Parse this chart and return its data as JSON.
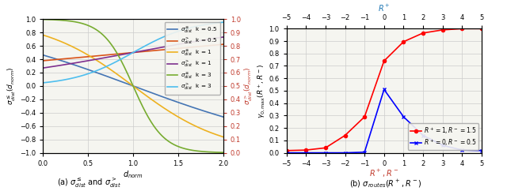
{
  "subplot1": {
    "x_range": [
      0,
      2
    ],
    "k_values": [
      0.5,
      1,
      3
    ],
    "left_ylim": [
      -1,
      1
    ],
    "right_ylim": [
      0,
      1
    ],
    "xlabel": "$d_{norm}$",
    "ylabel_left": "$\\sigma^{\\leq}_{dist}(d_{norm})$",
    "ylabel_right": "$\\sigma^{>}_{dist}(d_{norm})$",
    "legend_entries": [
      "$\\sigma^{\\leq}_{dist}$  k = 0.5",
      "$\\sigma^{>}_{dist}$  k = 0.5",
      "$\\sigma^{\\leq}_{dist}$  k = 1",
      "$\\sigma^{>}_{dist}$  k = 1",
      "$\\sigma^{\\leq}_{dist}$  k = 3",
      "$\\sigma^{>}_{dist}$  k = 3"
    ],
    "line_colors": [
      "#4475b4",
      "#d95319",
      "#edb120",
      "#7e2f8e",
      "#77ac30",
      "#4dbeee"
    ],
    "bg_color": "#f5f5f0"
  },
  "subplot2": {
    "x_vals": [
      -5,
      -4,
      -3,
      -2,
      -1,
      0,
      1,
      2,
      3,
      4,
      5
    ],
    "red_vals": [
      0.018,
      0.022,
      0.04,
      0.14,
      0.29,
      0.74,
      0.895,
      0.965,
      0.99,
      1.0,
      1.0
    ],
    "blue_vals": [
      0.0,
      0.0,
      0.0,
      0.0,
      0.005,
      0.51,
      0.29,
      0.14,
      0.06,
      0.022,
      0.018
    ],
    "x_top_label": "$R^+$",
    "x_bot_label": "$R^+, R^-$",
    "ylabel": "$\\gamma_{0,\\max}(R^+, R^-)$",
    "red_label": "$R^+=1, R^-=1.5$",
    "blue_label": "$R^+=0, R^-=0.5$",
    "xlim": [
      -5,
      5
    ],
    "ylim": [
      0,
      1
    ],
    "bg_color": "#f5f5f0"
  },
  "caption_a": "(a) $\\sigma^{\\leq}_{dist}$ and $\\sigma^{>}_{dist}$",
  "caption_b": "(b) $\\sigma_{routes}(R^+, R^-)$"
}
